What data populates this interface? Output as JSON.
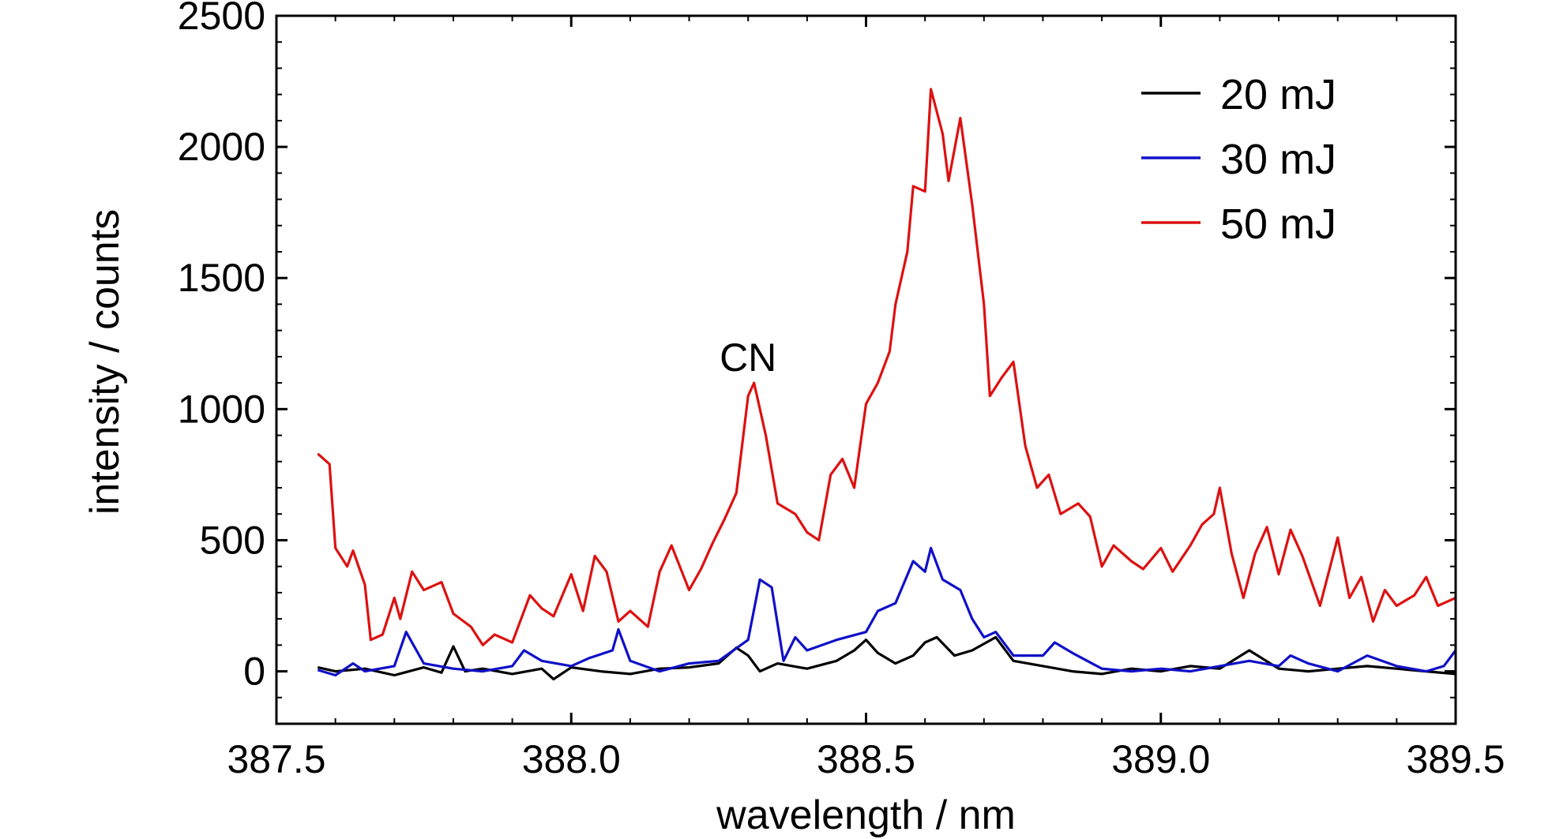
{
  "chart_data": {
    "type": "line",
    "title": "",
    "xlabel": "wavelength / nm",
    "ylabel": "intensity / counts",
    "xlim": [
      387.5,
      389.5
    ],
    "ylim": [
      -200,
      2500
    ],
    "xticks": [
      387.5,
      388.0,
      388.5,
      389.0,
      389.5
    ],
    "xtick_labels": [
      "387.5",
      "388.0",
      "388.5",
      "389.0",
      "389.5"
    ],
    "yticks": [
      0,
      500,
      1000,
      1500,
      2000,
      2500
    ],
    "ytick_labels": [
      "0",
      "500",
      "1000",
      "1500",
      "2000",
      "2500"
    ],
    "grid": false,
    "legend_position": "top-right",
    "annotations": [
      {
        "text": "CN",
        "x": 388.3,
        "y": 1200
      }
    ],
    "series": [
      {
        "name": "20 mJ",
        "color": "#000000",
        "points": [
          [
            387.57,
            15
          ],
          [
            387.6,
            0
          ],
          [
            387.65,
            10
          ],
          [
            387.7,
            -15
          ],
          [
            387.75,
            15
          ],
          [
            387.78,
            -5
          ],
          [
            387.8,
            95
          ],
          [
            387.82,
            0
          ],
          [
            387.85,
            10
          ],
          [
            387.9,
            -10
          ],
          [
            387.95,
            10
          ],
          [
            387.97,
            -30
          ],
          [
            388.0,
            15
          ],
          [
            388.05,
            0
          ],
          [
            388.1,
            -10
          ],
          [
            388.15,
            10
          ],
          [
            388.2,
            15
          ],
          [
            388.25,
            30
          ],
          [
            388.28,
            90
          ],
          [
            388.3,
            60
          ],
          [
            388.32,
            0
          ],
          [
            388.35,
            30
          ],
          [
            388.4,
            10
          ],
          [
            388.45,
            40
          ],
          [
            388.48,
            80
          ],
          [
            388.5,
            120
          ],
          [
            388.52,
            70
          ],
          [
            388.55,
            30
          ],
          [
            388.58,
            60
          ],
          [
            388.6,
            110
          ],
          [
            388.62,
            130
          ],
          [
            388.65,
            60
          ],
          [
            388.68,
            80
          ],
          [
            388.72,
            130
          ],
          [
            388.75,
            40
          ],
          [
            388.8,
            20
          ],
          [
            388.85,
            0
          ],
          [
            388.9,
            -10
          ],
          [
            388.95,
            10
          ],
          [
            389.0,
            0
          ],
          [
            389.05,
            20
          ],
          [
            389.1,
            10
          ],
          [
            389.15,
            80
          ],
          [
            389.2,
            10
          ],
          [
            389.25,
            0
          ],
          [
            389.3,
            10
          ],
          [
            389.35,
            20
          ],
          [
            389.4,
            10
          ],
          [
            389.45,
            0
          ],
          [
            389.5,
            -10
          ]
        ]
      },
      {
        "name": "30 mJ",
        "color": "#1010c8",
        "points": [
          [
            387.57,
            5
          ],
          [
            387.6,
            -15
          ],
          [
            387.63,
            30
          ],
          [
            387.65,
            0
          ],
          [
            387.7,
            20
          ],
          [
            387.72,
            150
          ],
          [
            387.75,
            30
          ],
          [
            387.8,
            10
          ],
          [
            387.85,
            0
          ],
          [
            387.9,
            20
          ],
          [
            387.92,
            80
          ],
          [
            387.95,
            40
          ],
          [
            388.0,
            20
          ],
          [
            388.03,
            50
          ],
          [
            388.07,
            80
          ],
          [
            388.08,
            160
          ],
          [
            388.1,
            40
          ],
          [
            388.15,
            0
          ],
          [
            388.2,
            30
          ],
          [
            388.25,
            40
          ],
          [
            388.3,
            120
          ],
          [
            388.32,
            350
          ],
          [
            388.34,
            320
          ],
          [
            388.36,
            40
          ],
          [
            388.38,
            130
          ],
          [
            388.4,
            80
          ],
          [
            388.45,
            120
          ],
          [
            388.5,
            150
          ],
          [
            388.52,
            230
          ],
          [
            388.55,
            260
          ],
          [
            388.58,
            420
          ],
          [
            388.6,
            380
          ],
          [
            388.61,
            470
          ],
          [
            388.63,
            350
          ],
          [
            388.66,
            310
          ],
          [
            388.68,
            200
          ],
          [
            388.7,
            130
          ],
          [
            388.72,
            150
          ],
          [
            388.75,
            60
          ],
          [
            388.8,
            60
          ],
          [
            388.82,
            110
          ],
          [
            388.85,
            70
          ],
          [
            388.9,
            10
          ],
          [
            388.95,
            0
          ],
          [
            389.0,
            10
          ],
          [
            389.05,
            0
          ],
          [
            389.1,
            20
          ],
          [
            389.15,
            40
          ],
          [
            389.2,
            20
          ],
          [
            389.22,
            60
          ],
          [
            389.25,
            30
          ],
          [
            389.3,
            0
          ],
          [
            389.35,
            60
          ],
          [
            389.4,
            20
          ],
          [
            389.45,
            0
          ],
          [
            389.48,
            20
          ],
          [
            389.5,
            80
          ]
        ]
      },
      {
        "name": "50 mJ",
        "color": "#dd1111",
        "points": [
          [
            387.57,
            830
          ],
          [
            387.59,
            790
          ],
          [
            387.6,
            470
          ],
          [
            387.62,
            400
          ],
          [
            387.63,
            460
          ],
          [
            387.65,
            330
          ],
          [
            387.66,
            120
          ],
          [
            387.68,
            140
          ],
          [
            387.7,
            280
          ],
          [
            387.71,
            200
          ],
          [
            387.73,
            380
          ],
          [
            387.75,
            310
          ],
          [
            387.78,
            340
          ],
          [
            387.8,
            220
          ],
          [
            387.83,
            170
          ],
          [
            387.85,
            100
          ],
          [
            387.87,
            140
          ],
          [
            387.9,
            110
          ],
          [
            387.93,
            290
          ],
          [
            387.95,
            240
          ],
          [
            387.97,
            210
          ],
          [
            388.0,
            370
          ],
          [
            388.02,
            230
          ],
          [
            388.04,
            440
          ],
          [
            388.06,
            380
          ],
          [
            388.08,
            190
          ],
          [
            388.1,
            230
          ],
          [
            388.13,
            170
          ],
          [
            388.15,
            380
          ],
          [
            388.17,
            480
          ],
          [
            388.2,
            310
          ],
          [
            388.22,
            390
          ],
          [
            388.24,
            490
          ],
          [
            388.26,
            580
          ],
          [
            388.28,
            680
          ],
          [
            388.3,
            1050
          ],
          [
            388.31,
            1100
          ],
          [
            388.33,
            900
          ],
          [
            388.35,
            640
          ],
          [
            388.38,
            600
          ],
          [
            388.4,
            530
          ],
          [
            388.42,
            500
          ],
          [
            388.44,
            750
          ],
          [
            388.46,
            810
          ],
          [
            388.48,
            700
          ],
          [
            388.5,
            1020
          ],
          [
            388.52,
            1100
          ],
          [
            388.54,
            1220
          ],
          [
            388.55,
            1400
          ],
          [
            388.57,
            1600
          ],
          [
            388.58,
            1850
          ],
          [
            388.6,
            1830
          ],
          [
            388.61,
            2220
          ],
          [
            388.63,
            2050
          ],
          [
            388.64,
            1870
          ],
          [
            388.66,
            2110
          ],
          [
            388.68,
            1780
          ],
          [
            388.7,
            1400
          ],
          [
            388.71,
            1050
          ],
          [
            388.73,
            1120
          ],
          [
            388.75,
            1180
          ],
          [
            388.77,
            860
          ],
          [
            388.79,
            700
          ],
          [
            388.81,
            750
          ],
          [
            388.83,
            600
          ],
          [
            388.86,
            640
          ],
          [
            388.88,
            590
          ],
          [
            388.9,
            400
          ],
          [
            388.92,
            480
          ],
          [
            388.95,
            420
          ],
          [
            388.97,
            390
          ],
          [
            389.0,
            470
          ],
          [
            389.02,
            380
          ],
          [
            389.05,
            480
          ],
          [
            389.07,
            560
          ],
          [
            389.09,
            600
          ],
          [
            389.1,
            700
          ],
          [
            389.12,
            450
          ],
          [
            389.14,
            280
          ],
          [
            389.16,
            450
          ],
          [
            389.18,
            550
          ],
          [
            389.2,
            370
          ],
          [
            389.22,
            540
          ],
          [
            389.24,
            440
          ],
          [
            389.27,
            250
          ],
          [
            389.3,
            510
          ],
          [
            389.32,
            280
          ],
          [
            389.34,
            360
          ],
          [
            389.36,
            190
          ],
          [
            389.38,
            310
          ],
          [
            389.4,
            250
          ],
          [
            389.43,
            290
          ],
          [
            389.45,
            360
          ],
          [
            389.47,
            250
          ],
          [
            389.5,
            280
          ]
        ]
      }
    ]
  }
}
